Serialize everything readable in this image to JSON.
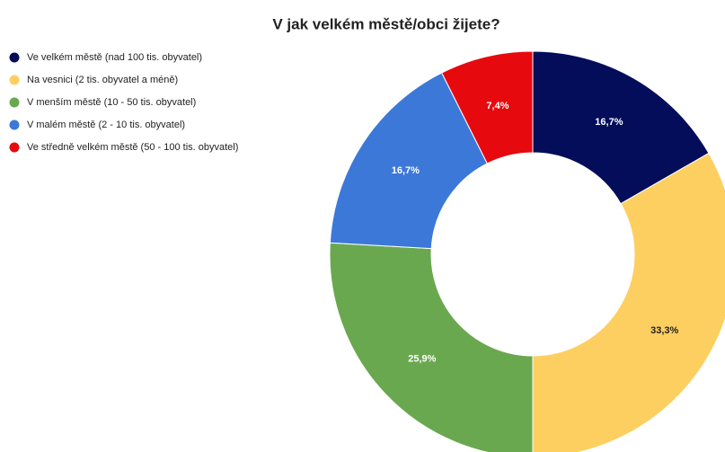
{
  "chart_data": {
    "type": "pie",
    "donut": true,
    "title": "V jak velkém městě/obci žijete?",
    "categories": [
      "Ve velkém městě (nad 100 tis. obyvatel)",
      "Na vesnici (2 tis. obyvatel a méně)",
      "V menším městě (10 - 50 tis. obyvatel)",
      "V malém městě (2 - 10 tis. obyvatel)",
      "Ve středně velkém městě (50 - 100 tis. obyvatel)"
    ],
    "values": [
      16.7,
      33.3,
      25.9,
      16.7,
      7.4
    ],
    "value_labels": [
      "16,7%",
      "33,3%",
      "25,9%",
      "16,7%",
      "7,4%"
    ],
    "colors": [
      "#030d5a",
      "#fdcf60",
      "#6aa84f",
      "#3c78d8",
      "#e60a0e"
    ],
    "legend": "left"
  }
}
